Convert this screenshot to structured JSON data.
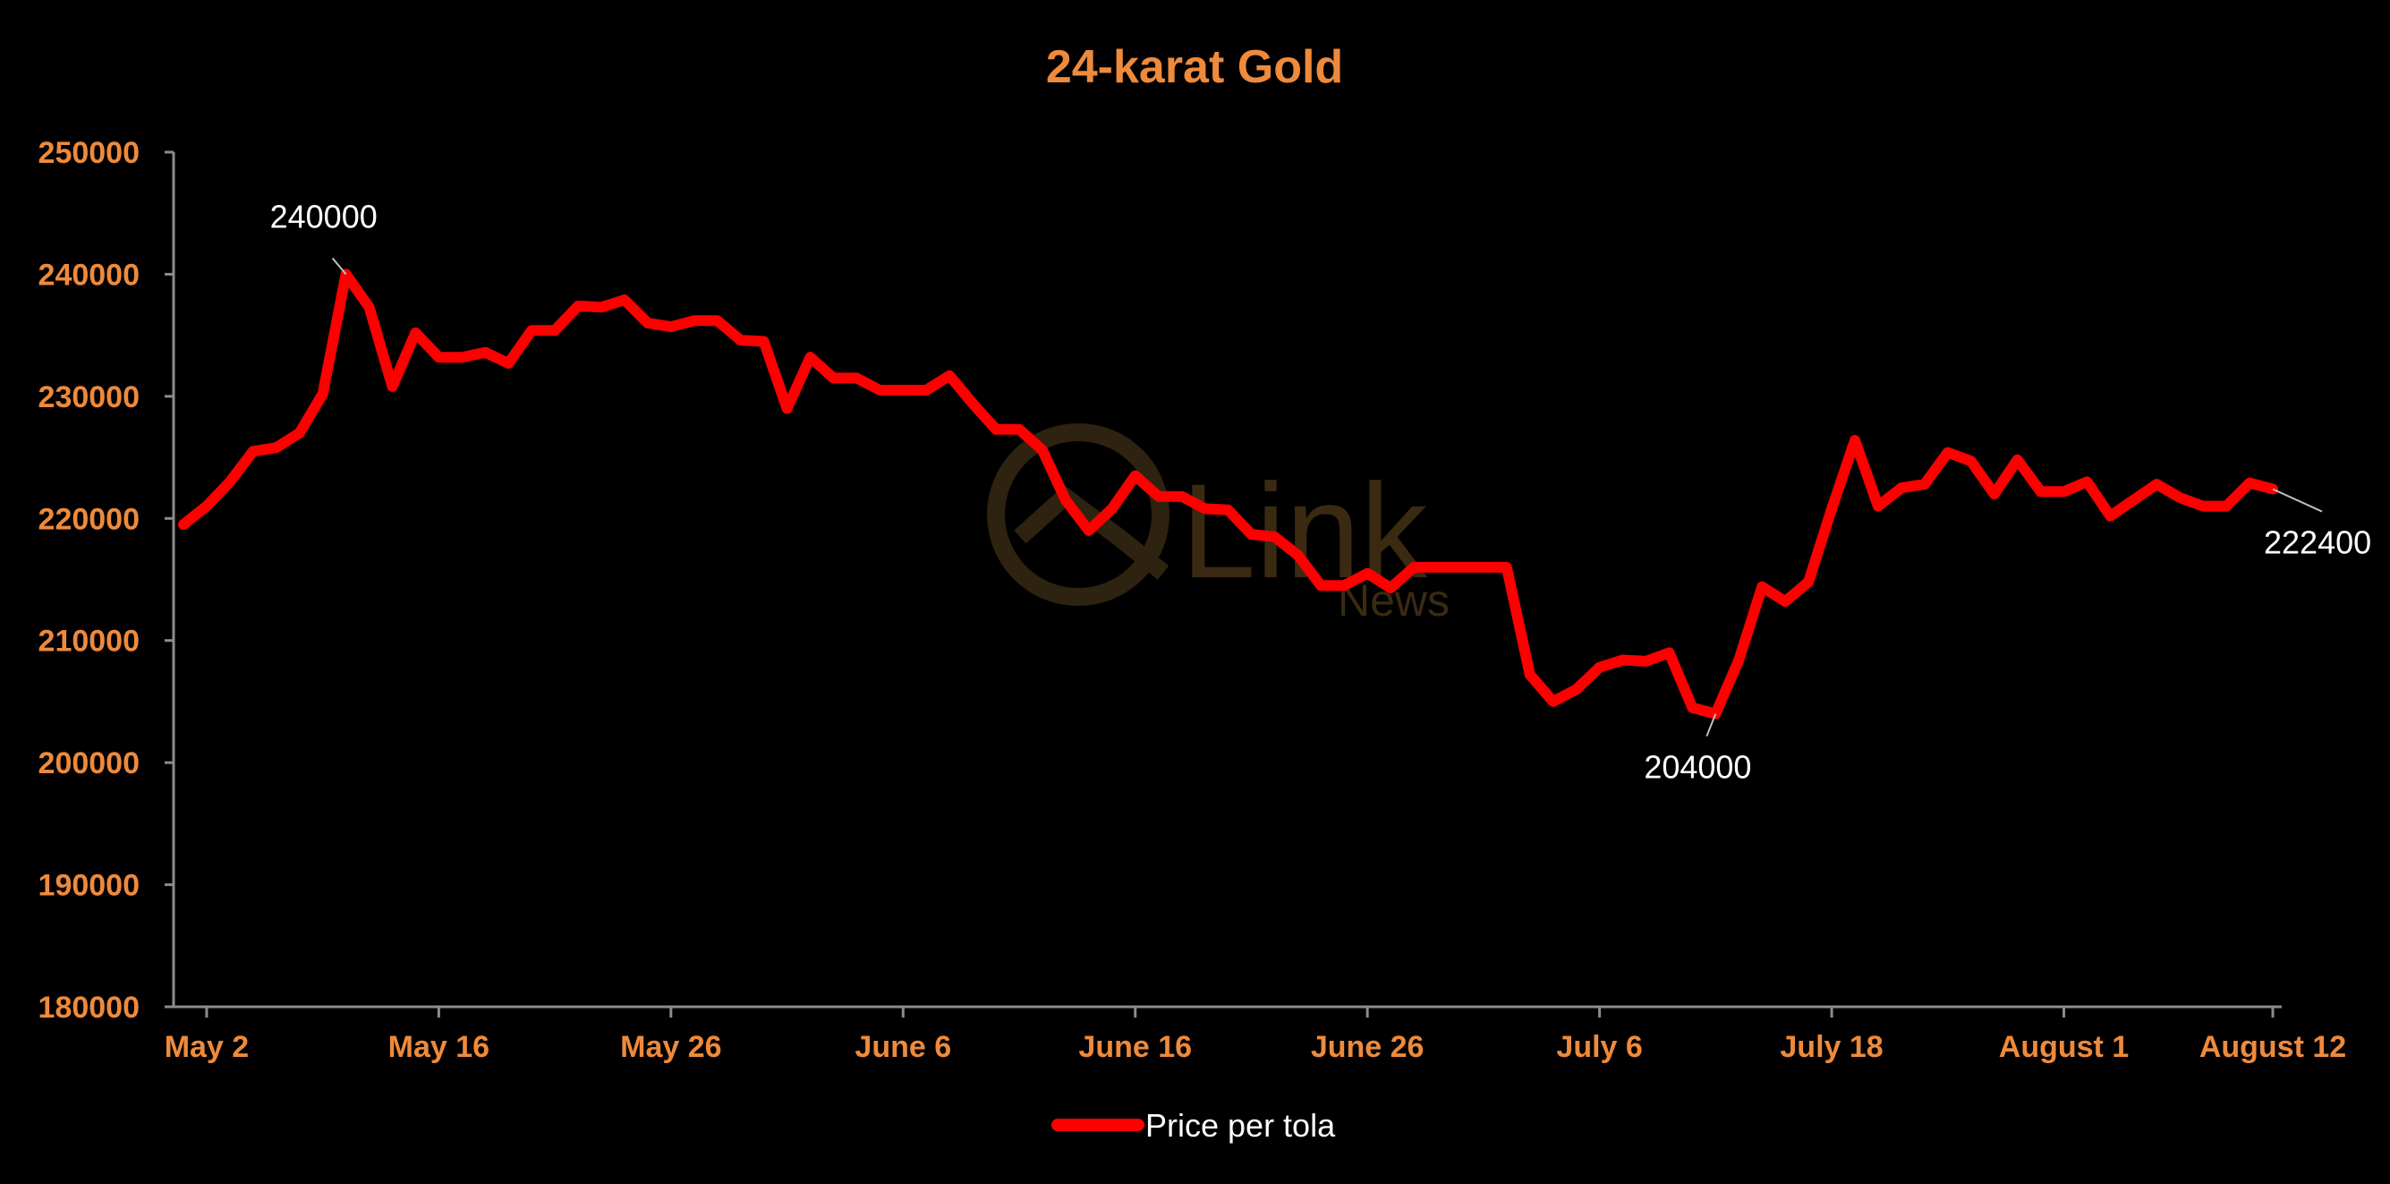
{
  "chart_data": {
    "type": "line",
    "title": "24-karat Gold",
    "xlabel": "",
    "ylabel": "",
    "ylim": [
      180000,
      250000
    ],
    "yticks": [
      180000,
      190000,
      200000,
      210000,
      220000,
      230000,
      240000,
      250000
    ],
    "xticks": [
      "May 2",
      "May 16",
      "May 26",
      "June 6",
      "June 16",
      "June 26",
      "July 6",
      "July 18",
      "August 1",
      "August 12"
    ],
    "grid": false,
    "legend": "bottom-center",
    "series": [
      {
        "name": "Price per tola",
        "color": "#ff0000",
        "values": [
          219500,
          221000,
          223000,
          225500,
          225800,
          227000,
          230200,
          240000,
          237300,
          230800,
          235200,
          233200,
          233200,
          233600,
          232700,
          235400,
          235400,
          237400,
          237300,
          237900,
          236000,
          235700,
          236200,
          236200,
          234600,
          234500,
          229000,
          233200,
          231500,
          231500,
          230500,
          230500,
          230500,
          231700,
          229400,
          227300,
          227300,
          225600,
          221500,
          219000,
          220800,
          223500,
          221800,
          221800,
          220800,
          220700,
          218700,
          218500,
          217000,
          214500,
          214500,
          215500,
          214300,
          216000,
          216000,
          216000,
          216000,
          216000,
          207200,
          205000,
          206000,
          207800,
          208400,
          208300,
          209000,
          204500,
          204000,
          208400,
          214400,
          213200,
          214800,
          220800,
          226400,
          221000,
          222500,
          222800,
          225400,
          224700,
          222000,
          224800,
          222200,
          222200,
          223000,
          220200,
          221500,
          222800,
          221700,
          221000,
          221000,
          222900,
          222400
        ]
      }
    ],
    "annotations": [
      {
        "label": "240000",
        "index": 7
      },
      {
        "label": "204000",
        "index": 66
      },
      {
        "label": "222400",
        "index": 90
      }
    ],
    "xtick_indices": [
      1,
      11,
      21,
      31,
      41,
      51,
      61,
      71,
      81,
      90
    ]
  },
  "watermark": {
    "brand": "Link",
    "sub": "News"
  }
}
